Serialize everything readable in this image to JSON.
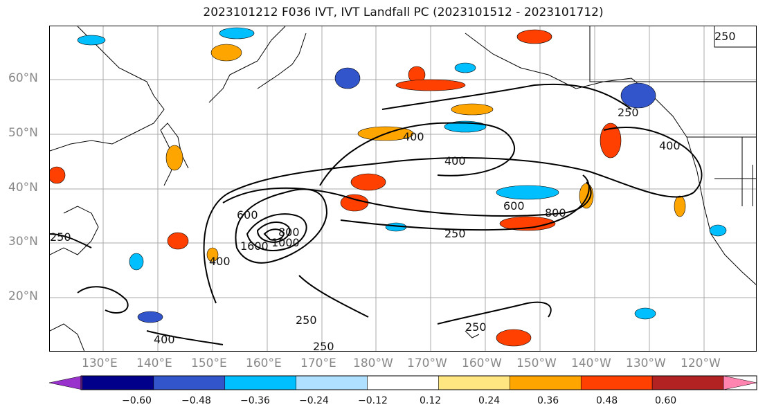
{
  "title": "2023101212 F036 IVT, IVT Landfall PC (2023101512 - 2023101712)",
  "latitude_labels": [
    "60°N",
    "50°N",
    "40°N",
    "30°N",
    "20°N"
  ],
  "longitude_labels": [
    "130°E",
    "140°E",
    "150°E",
    "160°E",
    "170°E",
    "180°W",
    "170°W",
    "160°W",
    "150°W",
    "140°W",
    "130°W",
    "120°W"
  ],
  "contour_labels": [
    "250",
    "400",
    "600",
    "800",
    "1000",
    "1600",
    "250",
    "400",
    "250",
    "400",
    "600",
    "800",
    "250",
    "400",
    "250",
    "250",
    "250",
    "400"
  ],
  "colorbar": {
    "tick_labels": [
      "−0.60",
      "−0.48",
      "−0.36",
      "−0.24",
      "−0.12",
      "0.12",
      "0.24",
      "0.36",
      "0.48",
      "0.60"
    ],
    "colors": [
      "#9932cc",
      "#00008b",
      "#3355cc",
      "#00bfff",
      "#b0e0ff",
      "#ffffff",
      "#ffe680",
      "#ffa500",
      "#ff4000",
      "#b22222",
      "#ff85b0"
    ]
  }
}
